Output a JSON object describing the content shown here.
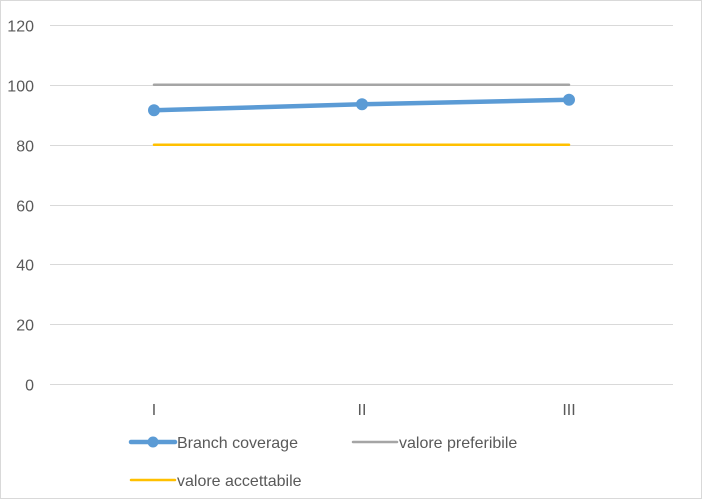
{
  "chart_data": {
    "type": "line",
    "title": "",
    "xlabel": "",
    "ylabel": "",
    "categories": [
      "I",
      "II",
      "III"
    ],
    "ylim": [
      0,
      120
    ],
    "y_ticks": [
      0,
      20,
      40,
      60,
      80,
      100,
      120
    ],
    "grid": true,
    "legend_position": "bottom",
    "series": [
      {
        "name": "Branch coverage",
        "values": [
          91.5,
          93.5,
          95
        ],
        "color": "#5B9BD5",
        "marker": "circle"
      },
      {
        "name": "valore preferibile",
        "values": [
          100,
          100,
          100
        ],
        "color": "#A5A5A5",
        "marker": "none"
      },
      {
        "name": "valore accettabile",
        "values": [
          80,
          80,
          80
        ],
        "color": "#FFC000",
        "marker": "none"
      }
    ]
  }
}
